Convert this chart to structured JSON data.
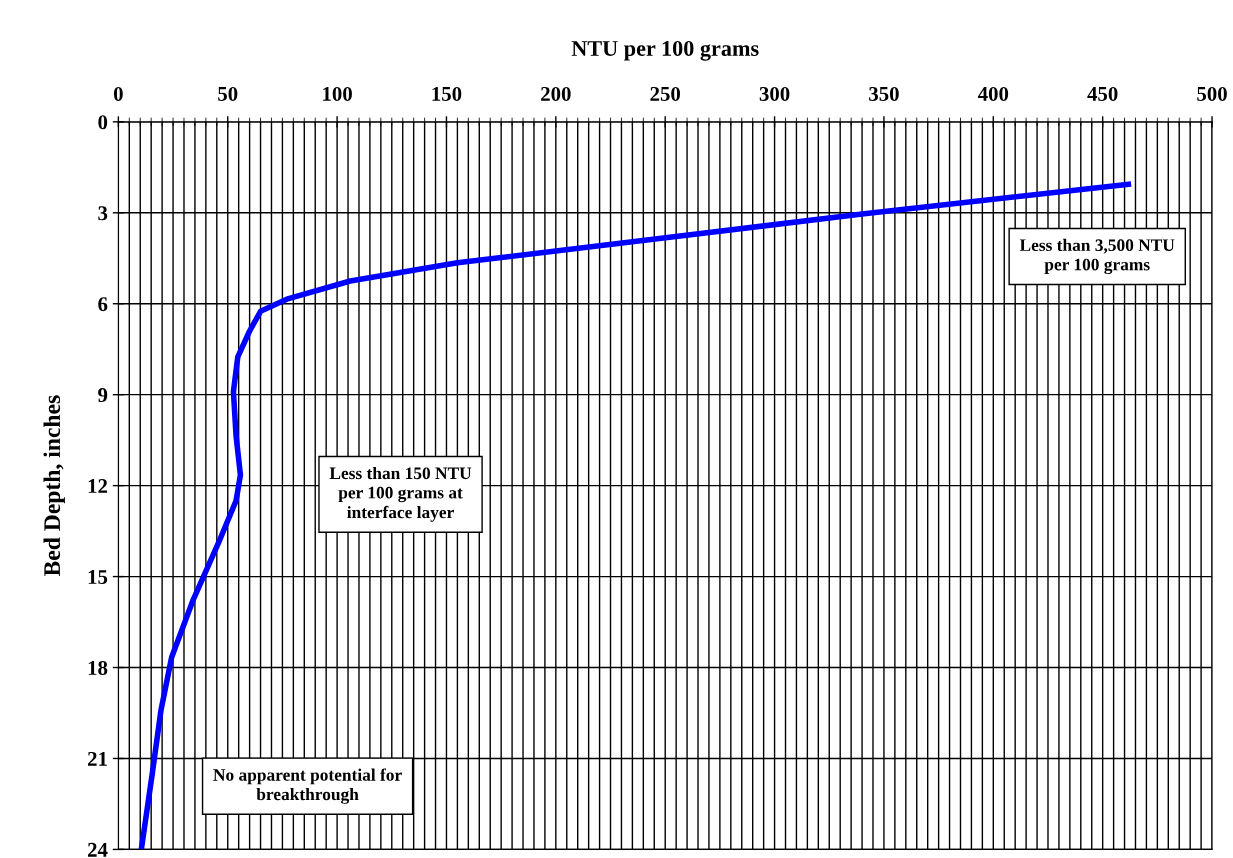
{
  "chart_data": {
    "type": "line",
    "xlabel": "NTU per 100 grams",
    "ylabel": "Bed Depth, inches",
    "xlim": [
      0,
      500
    ],
    "xticks": [
      0,
      50,
      100,
      150,
      200,
      250,
      300,
      350,
      400,
      450,
      500
    ],
    "ylim": [
      24,
      0
    ],
    "yticks": [
      0,
      3,
      6,
      9,
      12,
      15,
      18,
      21,
      24
    ],
    "grid": true,
    "series": [
      {
        "color": "#0000ff",
        "x": [
          463,
          341,
          253,
          155,
          106,
          77,
          65,
          60,
          54.6,
          52.6,
          53.8,
          55.8,
          53.8,
          45.7,
          34.3,
          24.4,
          19.5,
          15.5,
          10.5
        ],
        "values": [
          2.05,
          3.03,
          3.8,
          4.65,
          5.25,
          5.85,
          6.25,
          6.9,
          7.75,
          8.9,
          10.35,
          11.65,
          12.5,
          13.9,
          15.75,
          17.65,
          19.4,
          21.5,
          24
        ]
      }
    ],
    "annotations": [
      "Less than 3,500 NTU\nper 100 grams",
      "Less than 150 NTU\nper 100 grams at\ninterface layer",
      "No apparent potential for\nbreakthrough"
    ]
  }
}
